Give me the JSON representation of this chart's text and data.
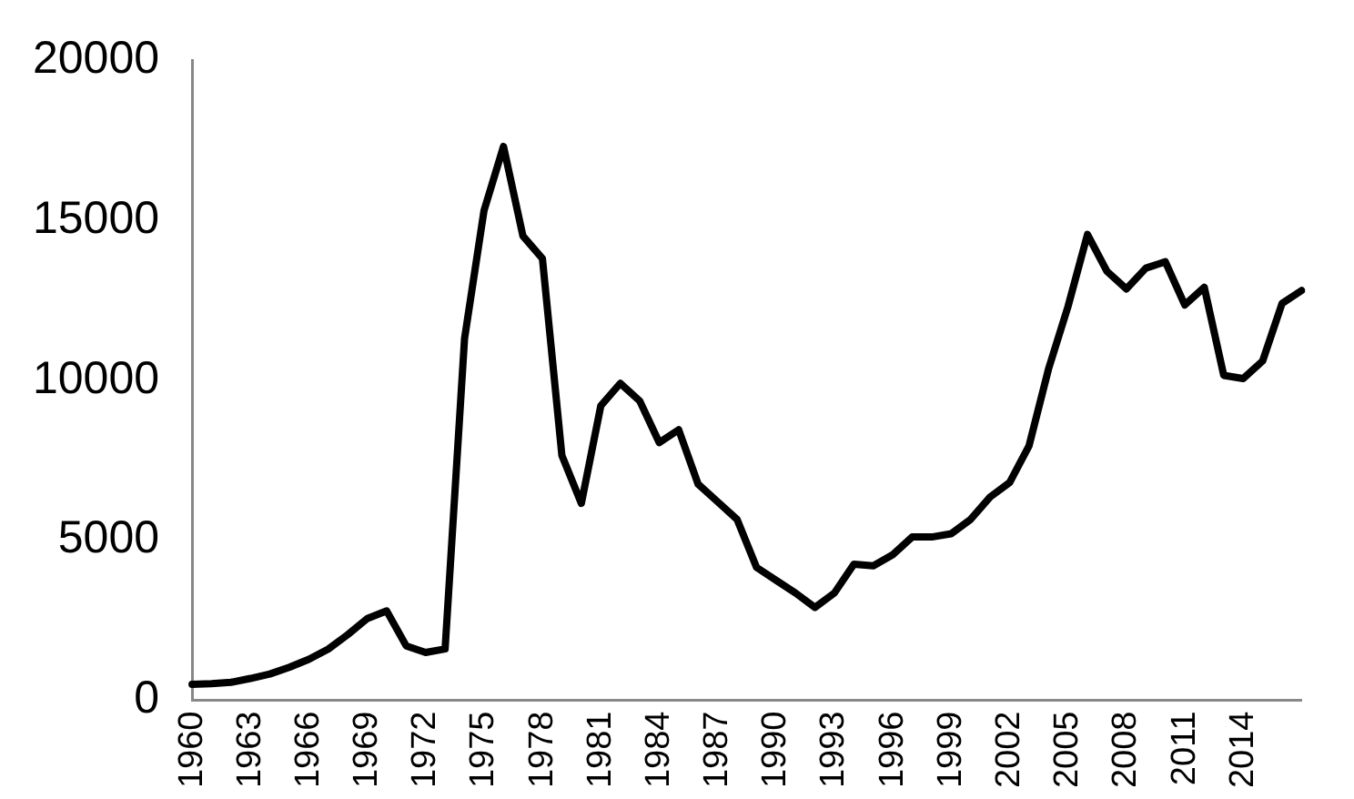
{
  "chart_data": {
    "type": "line",
    "categories": [
      "1960",
      null,
      null,
      "1963",
      null,
      null,
      "1966",
      null,
      null,
      "1969",
      null,
      null,
      "1972",
      null,
      null,
      "1975",
      null,
      null,
      "1978",
      null,
      null,
      "1981",
      null,
      null,
      "1984",
      null,
      null,
      "1987",
      null,
      null,
      "1990",
      null,
      null,
      "1993",
      null,
      null,
      "1996",
      null,
      null,
      "1999",
      null,
      null,
      "2002",
      null,
      null,
      "2005",
      null,
      null,
      "2008",
      null,
      null,
      "2011",
      null,
      null,
      "2014",
      null,
      null,
      null
    ],
    "series": [
      {
        "color": "#000000",
        "values": [
          500,
          520,
          560,
          680,
          820,
          1030,
          1280,
          1600,
          2050,
          2550,
          2790,
          1700,
          1490,
          1600,
          11300,
          15300,
          17300,
          14500,
          13800,
          7650,
          6150,
          9200,
          9900,
          9350,
          8050,
          8450,
          6750,
          6200,
          5650,
          4150,
          3750,
          3350,
          2900,
          3350,
          4250,
          4200,
          4550,
          5100,
          5100,
          5200,
          5650,
          6350,
          6800,
          7950,
          10350,
          12300,
          14550,
          13400,
          12850,
          13500,
          13700,
          12350,
          12900,
          10150,
          10050,
          10600,
          12400,
          12800
        ]
      }
    ],
    "ylim": [
      0,
      20000
    ],
    "yticks": [
      0,
      5000,
      10000,
      15000,
      20000
    ],
    "grid": false,
    "legend": false,
    "marker": "none",
    "line_style": "solid"
  }
}
